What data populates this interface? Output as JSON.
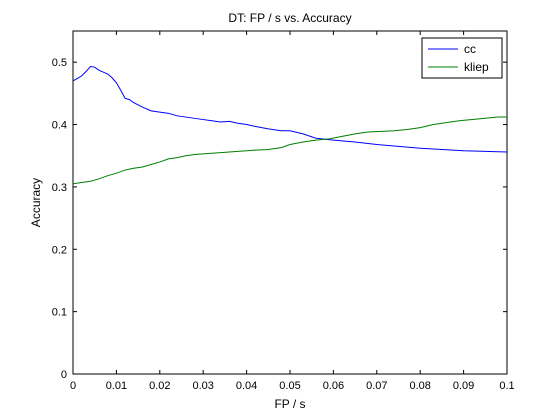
{
  "chart_data": {
    "type": "line",
    "title": "DT: FP / s vs. Accuracy",
    "xlabel": "FP / s",
    "ylabel": "Accuracy",
    "xlim": [
      0,
      0.1
    ],
    "ylim": [
      0,
      0.55
    ],
    "xticks": [
      0,
      0.01,
      0.02,
      0.03,
      0.04,
      0.05,
      0.06,
      0.07,
      0.08,
      0.09,
      0.1
    ],
    "xtick_labels": [
      "0",
      "0.01",
      "0.02",
      "0.03",
      "0.04",
      "0.05",
      "0.06",
      "0.07",
      "0.08",
      "0.09",
      "0.1"
    ],
    "yticks": [
      0,
      0.1,
      0.2,
      0.3,
      0.4,
      0.5
    ],
    "ytick_labels": [
      "0",
      "0.1",
      "0.2",
      "0.3",
      "0.4",
      "0.5"
    ],
    "grid": false,
    "legend_position": "top-right",
    "series": [
      {
        "name": "cc",
        "color": "#0000ff",
        "x": [
          0,
          0.001,
          0.002,
          0.003,
          0.004,
          0.005,
          0.006,
          0.007,
          0.008,
          0.009,
          0.01,
          0.011,
          0.012,
          0.013,
          0.014,
          0.016,
          0.018,
          0.02,
          0.022,
          0.024,
          0.026,
          0.028,
          0.03,
          0.032,
          0.034,
          0.036,
          0.038,
          0.04,
          0.042,
          0.045,
          0.048,
          0.05,
          0.053,
          0.056,
          0.06,
          0.065,
          0.07,
          0.075,
          0.08,
          0.085,
          0.09,
          0.095,
          0.1
        ],
        "y": [
          0.47,
          0.474,
          0.478,
          0.485,
          0.493,
          0.492,
          0.487,
          0.484,
          0.481,
          0.475,
          0.467,
          0.455,
          0.442,
          0.44,
          0.435,
          0.428,
          0.422,
          0.42,
          0.418,
          0.414,
          0.412,
          0.41,
          0.408,
          0.406,
          0.404,
          0.405,
          0.402,
          0.4,
          0.397,
          0.393,
          0.39,
          0.39,
          0.385,
          0.378,
          0.375,
          0.372,
          0.368,
          0.365,
          0.362,
          0.36,
          0.358,
          0.357,
          0.356
        ]
      },
      {
        "name": "kliep",
        "color": "#007f00",
        "x": [
          0,
          0.002,
          0.004,
          0.006,
          0.008,
          0.01,
          0.012,
          0.014,
          0.016,
          0.018,
          0.02,
          0.022,
          0.024,
          0.026,
          0.028,
          0.03,
          0.032,
          0.034,
          0.036,
          0.038,
          0.04,
          0.042,
          0.045,
          0.048,
          0.05,
          0.053,
          0.056,
          0.059,
          0.062,
          0.065,
          0.068,
          0.071,
          0.074,
          0.077,
          0.08,
          0.083,
          0.086,
          0.089,
          0.092,
          0.095,
          0.098,
          0.1
        ],
        "y": [
          0.305,
          0.307,
          0.309,
          0.313,
          0.318,
          0.322,
          0.327,
          0.33,
          0.332,
          0.336,
          0.34,
          0.345,
          0.347,
          0.35,
          0.352,
          0.353,
          0.354,
          0.355,
          0.356,
          0.357,
          0.358,
          0.359,
          0.36,
          0.363,
          0.368,
          0.372,
          0.375,
          0.377,
          0.381,
          0.385,
          0.388,
          0.389,
          0.39,
          0.392,
          0.395,
          0.4,
          0.403,
          0.406,
          0.408,
          0.41,
          0.412,
          0.412
        ]
      }
    ]
  }
}
